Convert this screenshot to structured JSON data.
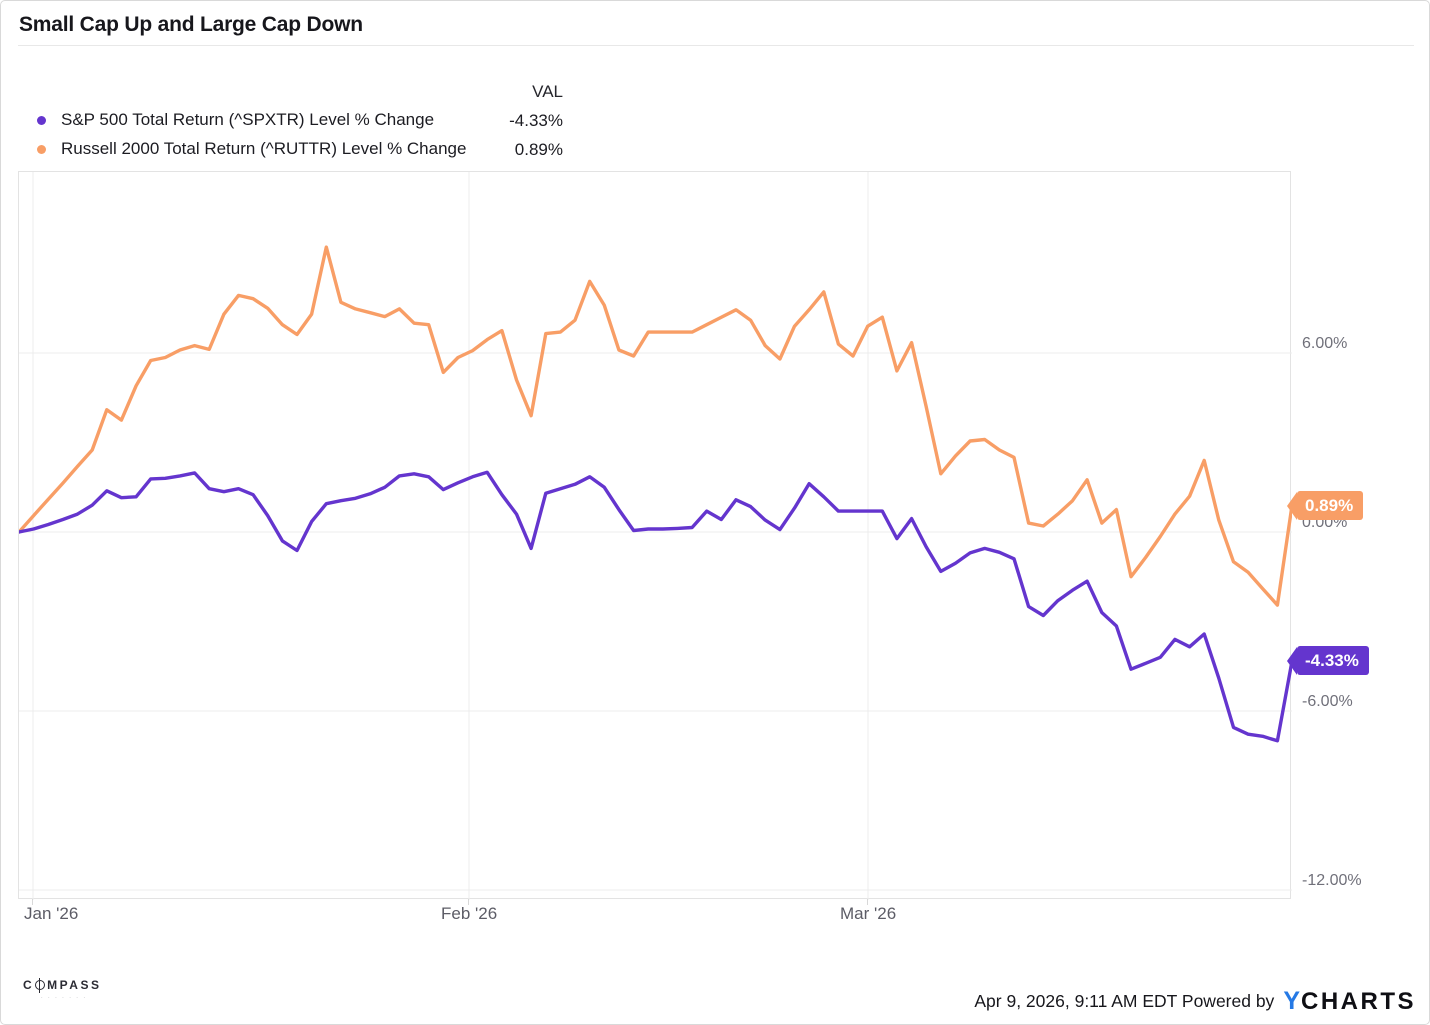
{
  "title": "Small Cap Up and Large Cap Down",
  "legend": {
    "val_header": "VAL",
    "items": [
      {
        "label": "S&P 500 Total Return (^SPXTR) Level % Change",
        "value": "-4.33%",
        "color": "#6435CE"
      },
      {
        "label": "Russell 2000 Total Return (^RUTTR) Level % Change",
        "value": "0.89%",
        "color": "#F89E66"
      }
    ]
  },
  "chart_data": {
    "type": "line",
    "title": "Small Cap Up and Large Cap Down",
    "xlabel": "",
    "ylabel": "Level % Change",
    "x_tick_labels": [
      "Jan '26",
      "Feb '26",
      "Mar '26"
    ],
    "y_tick_labels": [
      "6.00%",
      "0.00%",
      "-6.00%",
      "-12.00%"
    ],
    "y_ticks_pct": [
      6,
      0,
      -6,
      -12
    ],
    "ylim": [
      -12.3,
      12.1
    ],
    "grid": true,
    "legend_position": "top-left",
    "x_range_note": "daily values, Jan 1 2026 through Apr 8 2026",
    "series": [
      {
        "name": "S&P 500 Total Return (^SPXTR) Level % Change",
        "color": "#6435CE",
        "end_value": -4.33,
        "end_label": "-4.33%",
        "values": [
          0.0,
          0.1,
          0.25,
          0.42,
          0.6,
          0.9,
          1.38,
          1.15,
          1.18,
          1.78,
          1.8,
          1.88,
          1.98,
          1.45,
          1.35,
          1.45,
          1.25,
          0.55,
          -0.3,
          -0.62,
          0.35,
          0.95,
          1.05,
          1.13,
          1.28,
          1.5,
          1.88,
          1.95,
          1.85,
          1.42,
          1.65,
          1.85,
          2.0,
          1.25,
          0.6,
          -0.55,
          1.3,
          1.45,
          1.6,
          1.85,
          1.5,
          0.75,
          0.05,
          0.1,
          0.1,
          0.12,
          0.15,
          0.7,
          0.42,
          1.08,
          0.85,
          0.4,
          0.08,
          0.8,
          1.62,
          1.18,
          0.7,
          0.7,
          0.7,
          0.7,
          -0.22,
          0.45,
          -0.5,
          -1.32,
          -1.05,
          -0.7,
          -0.55,
          -0.68,
          -0.9,
          -2.5,
          -2.8,
          -2.3,
          -1.95,
          -1.65,
          -2.7,
          -3.15,
          -4.6,
          -4.4,
          -4.2,
          -3.6,
          -3.85,
          -3.42,
          -4.9,
          -6.55,
          -6.78,
          -6.85,
          -7.0,
          -4.33
        ]
      },
      {
        "name": "Russell 2000 Total Return (^RUTTR) Level % Change",
        "color": "#F89E66",
        "end_value": 0.89,
        "end_label": "0.89%",
        "values": [
          0.0,
          0.55,
          1.1,
          1.64,
          2.2,
          2.75,
          4.1,
          3.75,
          4.9,
          5.75,
          5.85,
          6.1,
          6.25,
          6.12,
          7.3,
          7.93,
          7.82,
          7.5,
          6.95,
          6.62,
          7.3,
          9.55,
          7.7,
          7.48,
          7.35,
          7.22,
          7.48,
          7.0,
          6.95,
          5.35,
          5.85,
          6.08,
          6.45,
          6.75,
          5.1,
          3.9,
          6.65,
          6.7,
          7.1,
          8.4,
          7.6,
          6.1,
          5.9,
          6.7,
          6.7,
          6.7,
          6.7,
          6.95,
          7.2,
          7.45,
          7.1,
          6.25,
          5.8,
          6.9,
          7.45,
          8.05,
          6.3,
          5.9,
          6.9,
          7.2,
          5.4,
          6.35,
          4.2,
          1.95,
          2.55,
          3.05,
          3.1,
          2.75,
          2.5,
          0.3,
          0.2,
          0.6,
          1.05,
          1.75,
          0.3,
          0.75,
          -1.5,
          -0.85,
          -0.15,
          0.6,
          1.2,
          2.4,
          0.4,
          -1.0,
          -1.35,
          -1.9,
          -2.45,
          0.89
        ]
      }
    ]
  },
  "badges": [
    {
      "text": "0.89%",
      "color": "#F89E66"
    },
    {
      "text": "-4.33%",
      "color": "#6435CE"
    }
  ],
  "footer": {
    "brand": "COMPASS",
    "brand_tagline": "· · ·  · · · ·",
    "timestamp": "Apr 9, 2026, 9:11 AM EDT Powered by",
    "ycharts_y": "Y",
    "ycharts_rest": "CHARTS"
  }
}
